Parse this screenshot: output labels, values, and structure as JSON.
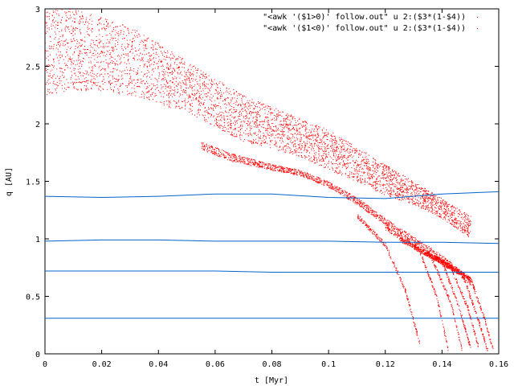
{
  "chart_data": {
    "type": "scatter",
    "xlabel": "t [Myr]",
    "ylabel": "q [AU]",
    "xlim": [
      0,
      0.16
    ],
    "ylim": [
      0,
      3
    ],
    "x_ticks": [
      "0",
      "0.02",
      "0.04",
      "0.06",
      "0.08",
      "0.1",
      "0.12",
      "0.14",
      "0.16"
    ],
    "y_ticks": [
      "0",
      "0.5",
      "1",
      "1.5",
      "2",
      "2.5",
      "3"
    ],
    "grid": false,
    "legend_position": "top-right",
    "colors": {
      "scatter": "#ff0000",
      "lines": "#0066cc"
    },
    "series": [
      {
        "name": "\"<awk '($1>0)' follow.out\" u 2:($3*(1-$4))",
        "color": "#ff0000",
        "marker": "dot"
      },
      {
        "name": "\"<awk '($1<0)' follow.out\" u 2:($3*(1-$4))",
        "color": "#ff0000",
        "marker": "dot"
      }
    ],
    "lines": [
      {
        "x": [
          0,
          0.02,
          0.04,
          0.06,
          0.08,
          0.1,
          0.12,
          0.14,
          0.16
        ],
        "y": [
          1.37,
          1.36,
          1.37,
          1.39,
          1.39,
          1.36,
          1.35,
          1.39,
          1.41
        ]
      },
      {
        "x": [
          0,
          0.02,
          0.04,
          0.06,
          0.08,
          0.1,
          0.12,
          0.14,
          0.16
        ],
        "y": [
          0.98,
          0.99,
          0.99,
          0.98,
          0.98,
          0.98,
          0.97,
          0.97,
          0.96
        ]
      },
      {
        "x": [
          0,
          0.02,
          0.04,
          0.06,
          0.08,
          0.1,
          0.12,
          0.14,
          0.16
        ],
        "y": [
          0.72,
          0.72,
          0.72,
          0.72,
          0.71,
          0.71,
          0.71,
          0.71,
          0.71
        ]
      },
      {
        "x": [
          0,
          0.02,
          0.04,
          0.06,
          0.08,
          0.1,
          0.12,
          0.14,
          0.16
        ],
        "y": [
          0.31,
          0.31,
          0.31,
          0.31,
          0.31,
          0.31,
          0.31,
          0.31,
          0.31
        ]
      }
    ],
    "bands": [
      {
        "x": [
          0,
          0.01,
          0.03,
          0.05,
          0.07,
          0.09,
          0.1,
          0.11,
          0.12,
          0.13,
          0.14,
          0.15
        ],
        "y_low": [
          2.25,
          2.3,
          2.25,
          2.1,
          1.85,
          1.72,
          1.6,
          1.5,
          1.38,
          1.3,
          1.18,
          1.0
        ],
        "y_high": [
          3.0,
          3.0,
          2.85,
          2.55,
          2.25,
          2.05,
          1.95,
          1.8,
          1.65,
          1.5,
          1.35,
          1.2
        ]
      },
      {
        "x": [
          0.055,
          0.065,
          0.08,
          0.09,
          0.1,
          0.11,
          0.12,
          0.13,
          0.14,
          0.15
        ],
        "y_low": [
          1.78,
          1.68,
          1.6,
          1.55,
          1.45,
          1.3,
          1.12,
          0.95,
          0.8,
          0.6
        ],
        "y_high": [
          1.85,
          1.75,
          1.65,
          1.6,
          1.5,
          1.36,
          1.18,
          1.02,
          0.86,
          0.66
        ]
      }
    ],
    "falling_branches": [
      {
        "x": [
          0.11,
          0.12,
          0.127,
          0.132
        ],
        "y": [
          1.2,
          0.95,
          0.55,
          0.1
        ]
      },
      {
        "x": [
          0.12,
          0.132,
          0.138,
          0.142
        ],
        "y": [
          1.1,
          0.9,
          0.5,
          0.05
        ]
      },
      {
        "x": [
          0.125,
          0.136,
          0.143,
          0.147
        ],
        "y": [
          1.0,
          0.85,
          0.45,
          0.03
        ]
      },
      {
        "x": [
          0.13,
          0.14,
          0.146,
          0.15
        ],
        "y": [
          0.95,
          0.8,
          0.4,
          0.05
        ]
      },
      {
        "x": [
          0.133,
          0.143,
          0.149,
          0.153
        ],
        "y": [
          0.9,
          0.75,
          0.4,
          0.04
        ]
      },
      {
        "x": [
          0.137,
          0.147,
          0.152,
          0.156
        ],
        "y": [
          0.85,
          0.7,
          0.35,
          0.03
        ]
      },
      {
        "x": [
          0.14,
          0.15,
          0.155,
          0.158
        ],
        "y": [
          0.8,
          0.65,
          0.3,
          0.02
        ]
      }
    ]
  }
}
